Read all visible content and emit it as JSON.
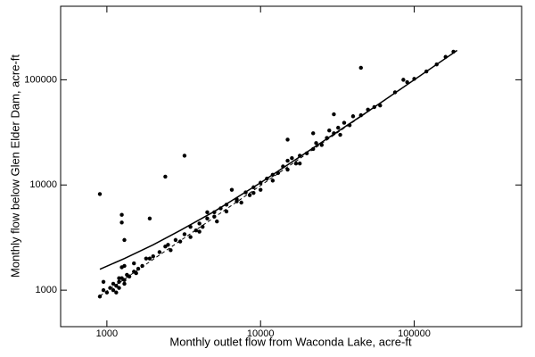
{
  "chart_data": {
    "type": "scatter",
    "x_label": "Monthly outlet flow from Waconda Lake, acre-ft",
    "y_label": "Monthly flow below Glen Elder Dam, acre-ft",
    "xscale": "log",
    "yscale": "log",
    "xlim": [
      500,
      500000
    ],
    "ylim": [
      450,
      500000
    ],
    "xticks": [
      1000,
      10000,
      100000
    ],
    "yticks": [
      1000,
      10000,
      100000
    ],
    "color": "#000000",
    "points": {
      "x": [
        900,
        2400,
        3200,
        1900,
        1250,
        1250,
        1300,
        45000,
        85000,
        15000,
        22000,
        30000,
        18000,
        900,
        950,
        1000,
        1050,
        1100,
        1150,
        1200,
        1200,
        1250,
        1250,
        1300,
        1300,
        1350,
        1200,
        1400,
        1500,
        1550,
        1600,
        1500,
        1700,
        1800,
        950,
        1100,
        1300,
        1150,
        2000,
        2200,
        2400,
        2600,
        2800,
        3000,
        3200,
        3500,
        3500,
        3800,
        4000,
        4200,
        4500,
        4500,
        5000,
        5000,
        5200,
        5500,
        6000,
        6000,
        6500,
        7000,
        7500,
        8000,
        8500,
        9000,
        10000,
        10000,
        11000,
        12000,
        12000,
        13000,
        14000,
        15000,
        15000,
        16000,
        17000,
        18000,
        20000,
        22000,
        23000,
        25000,
        27000,
        28000,
        30000,
        32000,
        33000,
        35000,
        38000,
        40000,
        45000,
        50000,
        55000,
        60000,
        75000,
        90000,
        100000,
        120000,
        140000,
        160000,
        180000,
        1900,
        2500,
        4000,
        7000,
        9000
      ],
      "y": [
        8200,
        12000,
        19000,
        4800,
        5200,
        4400,
        3000,
        130000,
        100000,
        27000,
        31000,
        47000,
        16000,
        870,
        1000,
        950,
        1050,
        1000,
        1100,
        1200,
        1050,
        1300,
        1650,
        1150,
        1250,
        1400,
        1300,
        1350,
        1500,
        1450,
        1600,
        1800,
        1700,
        2000,
        1200,
        1150,
        1700,
        950,
        2100,
        2300,
        2600,
        2400,
        3000,
        2900,
        3400,
        4000,
        3200,
        3700,
        4300,
        4000,
        4800,
        5500,
        5000,
        5500,
        4500,
        6000,
        5600,
        6500,
        9000,
        7300,
        6800,
        8500,
        8000,
        9500,
        10500,
        9000,
        11500,
        12500,
        11000,
        13000,
        15000,
        14000,
        17000,
        18000,
        16000,
        19000,
        20000,
        22000,
        25000,
        24000,
        28000,
        33000,
        31000,
        35000,
        30000,
        39000,
        37000,
        45000,
        46000,
        52000,
        55000,
        57000,
        76000,
        95000,
        102000,
        120000,
        140000,
        165000,
        185000,
        2000,
        2700,
        3600,
        7000,
        8400
      ]
    },
    "lines": [
      {
        "style": "solid",
        "x": [
          900,
          1300,
          2000,
          3000,
          5000,
          10000,
          20000,
          50000,
          190000
        ],
        "y": [
          1580,
          2000,
          2700,
          3700,
          5600,
          10500,
          20500,
          50000,
          190000
        ]
      },
      {
        "style": "dashed",
        "x": [
          900,
          190000
        ],
        "y": [
          880,
          190000
        ]
      }
    ]
  }
}
